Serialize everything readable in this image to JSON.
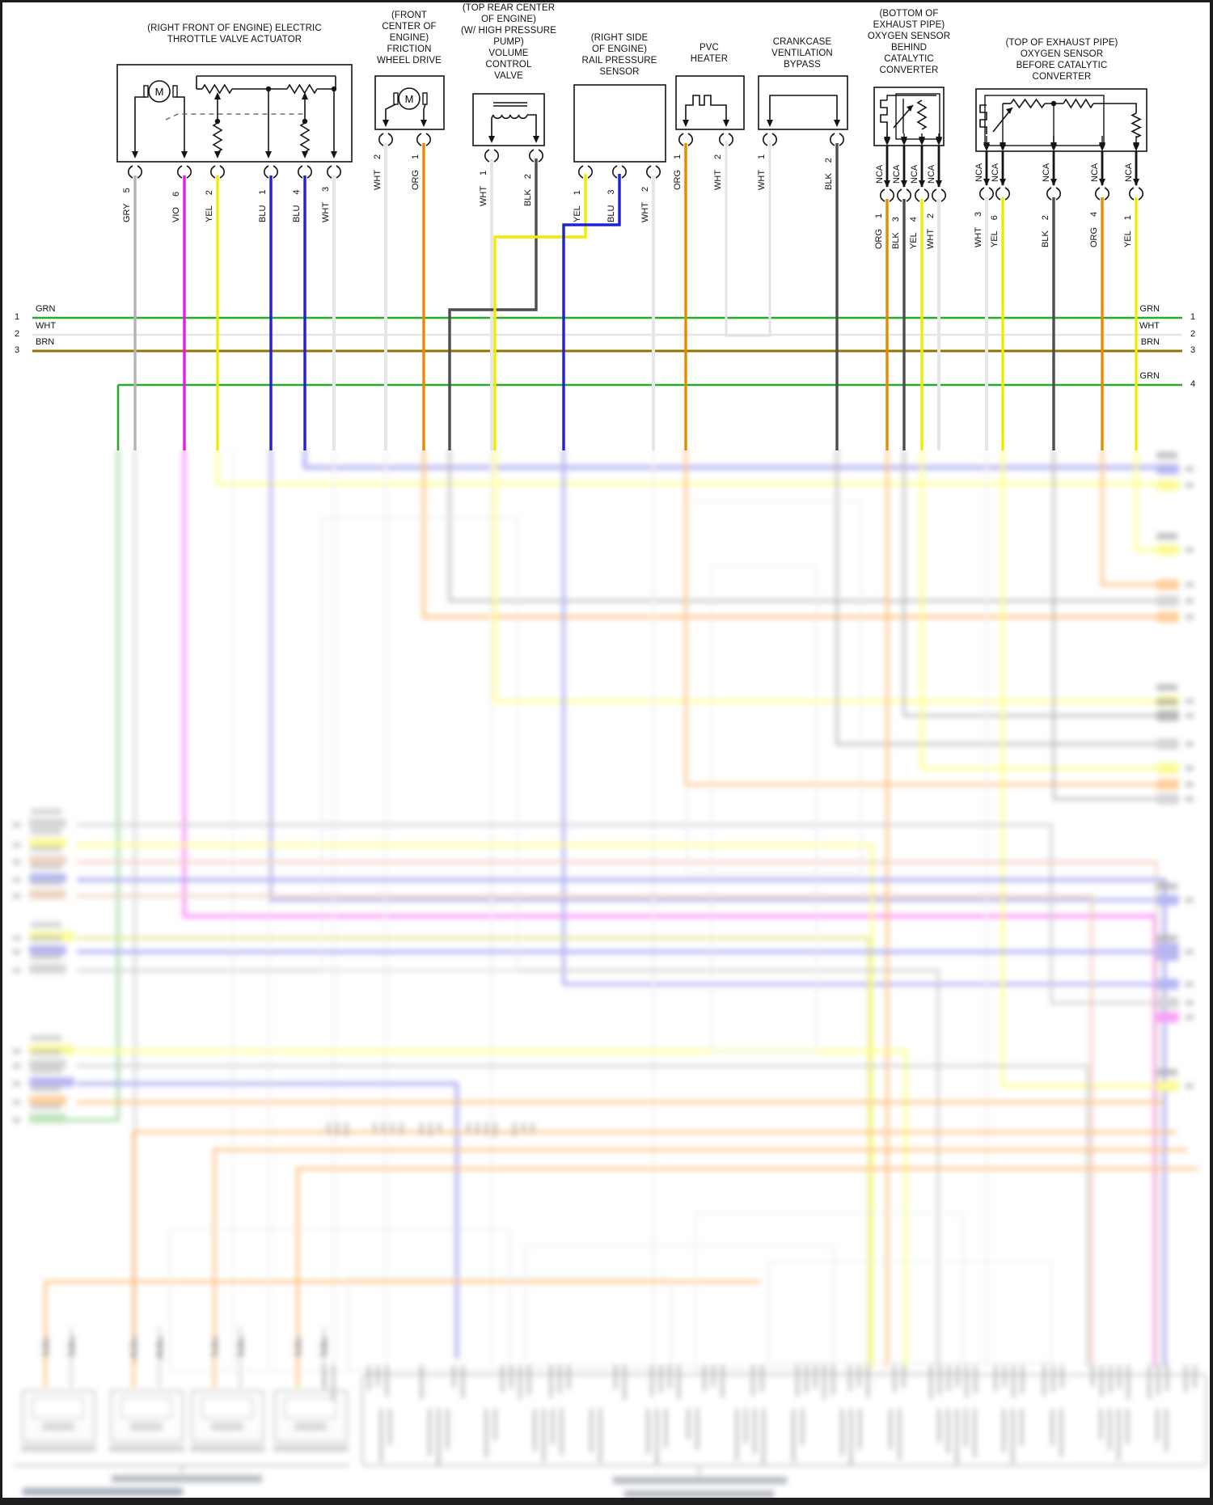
{
  "page": {
    "background": "#ffffff",
    "frame_color": "#1c1c1c"
  },
  "components": [
    {
      "title_lines": [
        "(RIGHT FRONT OF ENGINE) ELECTRIC",
        "THROTTLE VALVE ACTUATOR"
      ],
      "symbol": "motor-with-dual-potentiometer",
      "motor_label": "M",
      "pins": [
        {
          "color": "GRY",
          "num": "5"
        },
        {
          "color": "VIO",
          "num": "6"
        },
        {
          "color": "YEL",
          "num": "2"
        },
        {
          "color": "BLU",
          "num": "1"
        },
        {
          "color": "BLU",
          "num": "4"
        },
        {
          "color": "WHT",
          "num": "3"
        }
      ]
    },
    {
      "title_lines": [
        "(FRONT",
        "CENTER OF",
        "ENGINE)",
        "FRICTION",
        "WHEEL DRIVE"
      ],
      "symbol": "motor",
      "motor_label": "M",
      "pins": [
        {
          "color": "WHT",
          "num": "2"
        },
        {
          "color": "ORG",
          "num": "1"
        }
      ]
    },
    {
      "title_lines": [
        "(TOP REAR CENTER",
        "OF ENGINE)",
        "(W/ HIGH PRESSURE",
        "PUMP)",
        "VOLUME",
        "CONTROL",
        "VALVE"
      ],
      "symbol": "solenoid-coil",
      "pins": [
        {
          "color": "WHT",
          "num": "1"
        },
        {
          "color": "BLK",
          "num": "2"
        }
      ]
    },
    {
      "title_lines": [
        "(RIGHT SIDE",
        "OF ENGINE)",
        "RAIL PRESSURE",
        "SENSOR"
      ],
      "symbol": "none",
      "pins": [
        {
          "color": "YEL",
          "num": "1"
        },
        {
          "color": "BLU",
          "num": "3"
        },
        {
          "color": "WHT",
          "num": "2"
        }
      ]
    },
    {
      "title_lines": [
        "PVC",
        "HEATER"
      ],
      "symbol": "heater-element",
      "pins": [
        {
          "color": "ORG",
          "num": "1"
        },
        {
          "color": "WHT",
          "num": "2"
        }
      ]
    },
    {
      "title_lines": [
        "CRANKCASE",
        "VENTILATION",
        "BYPASS"
      ],
      "symbol": "wire-link",
      "pins": [
        {
          "color": "WHT",
          "num": "1"
        },
        {
          "color": "BLK",
          "num": "2"
        }
      ]
    },
    {
      "title_lines": [
        "(BOTTOM OF",
        "EXHAUST PIPE)",
        "OXYGEN SENSOR",
        "BEHIND",
        "CATALYTIC",
        "CONVERTER"
      ],
      "symbol": "o2-sensor",
      "nca_label": "NCA",
      "pins": [
        {
          "color": "ORG",
          "num": "1"
        },
        {
          "color": "BLK",
          "num": "3"
        },
        {
          "color": "YEL",
          "num": "4"
        },
        {
          "color": "WHT",
          "num": "2"
        }
      ]
    },
    {
      "title_lines": [
        "(TOP OF EXHAUST PIPE)",
        "OXYGEN SENSOR",
        "BEFORE CATALYTIC",
        "CONVERTER"
      ],
      "symbol": "o2-sensor-dual",
      "nca_label": "NCA",
      "pins": [
        {
          "color": "WHT",
          "num": "3"
        },
        {
          "color": "YEL",
          "num": "6"
        },
        {
          "color": "BLK",
          "num": "2"
        },
        {
          "color": "ORG",
          "num": "4"
        },
        {
          "color": "YEL",
          "num": "1"
        }
      ]
    }
  ],
  "bus_lines": [
    {
      "num": "1",
      "color": "GRN"
    },
    {
      "num": "2",
      "color": "WHT"
    },
    {
      "num": "3",
      "color": "BRN"
    },
    {
      "num": "4",
      "color": "GRN"
    }
  ],
  "wire_colors": {
    "GRY": "#b3b3b3",
    "VIO": "#e619e6",
    "YEL": "#efec00",
    "BLU": "#2020d6",
    "WHT": "#e6e6e6",
    "ORG": "#e68a00",
    "BLK": "#4d4d4d",
    "GRN": "#2ca82c",
    "BRN": "#8f7600",
    "NCA": "#141414"
  }
}
